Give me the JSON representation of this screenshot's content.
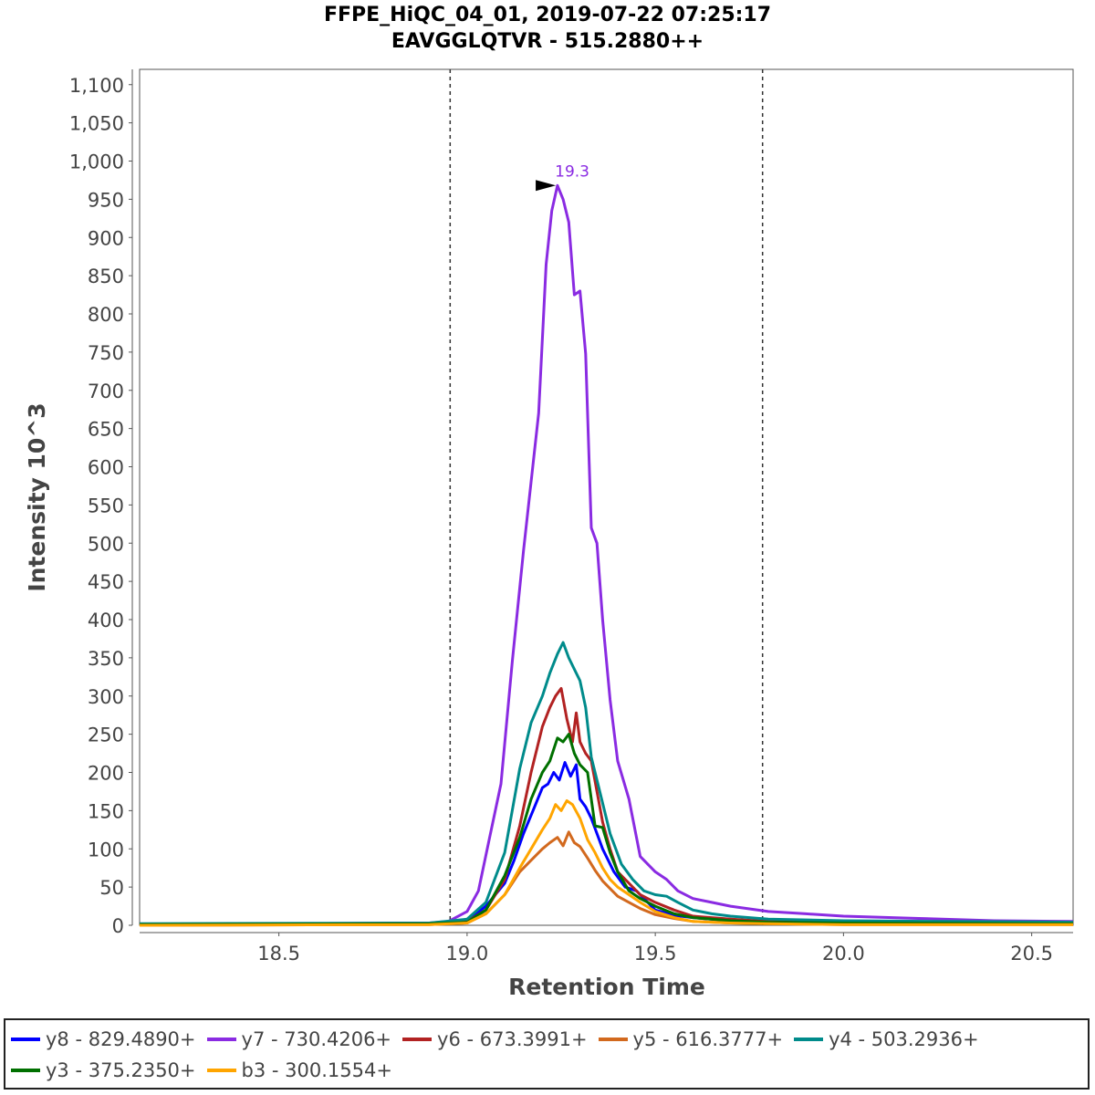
{
  "chart_data": {
    "type": "line",
    "title": "FFPE_HiQC_04_01, 2019-07-22 07:25:17",
    "subtitle": "EAVGGLQTVR - 515.2880++",
    "xlabel": "Retention Time",
    "ylabel": "Intensity 10^3",
    "xlim": [
      18.13,
      20.61
    ],
    "ylim": [
      0,
      1120
    ],
    "x_ticks": [
      18.5,
      19.0,
      19.5,
      20.0,
      20.5
    ],
    "x_tick_labels": [
      "18.5",
      "19.0",
      "19.5",
      "20.0",
      "20.5"
    ],
    "y_ticks": [
      0,
      50,
      100,
      150,
      200,
      250,
      300,
      350,
      400,
      450,
      500,
      550,
      600,
      650,
      700,
      750,
      800,
      850,
      900,
      950,
      1000,
      1050,
      1100
    ],
    "y_tick_labels": [
      "0",
      "50",
      "100",
      "150",
      "200",
      "250",
      "300",
      "350",
      "400",
      "450",
      "500",
      "550",
      "600",
      "650",
      "700",
      "750",
      "800",
      "850",
      "900",
      "950",
      "1,000",
      "1,050",
      "1,100"
    ],
    "integration_bounds": [
      18.955,
      19.785
    ],
    "peak_annotation": {
      "label": "19.3",
      "x": 19.255,
      "y": 968,
      "color": "#8a2be2"
    },
    "grid": false,
    "legend_position": "bottom",
    "series": [
      {
        "name": "y8 - 829.4890+",
        "color": "#0000ff",
        "width": 3,
        "x": [
          18.13,
          18.5,
          18.95,
          19.0,
          19.05,
          19.1,
          19.125,
          19.15,
          19.175,
          19.2,
          19.215,
          19.23,
          19.245,
          19.26,
          19.275,
          19.29,
          19.3,
          19.315,
          19.33,
          19.345,
          19.36,
          19.39,
          19.42,
          19.45,
          19.48,
          19.5,
          19.55,
          19.6,
          19.7,
          19.8,
          20.0,
          20.3,
          20.61
        ],
        "values": [
          1,
          1,
          2,
          6,
          25,
          55,
          85,
          120,
          150,
          180,
          185,
          200,
          190,
          213,
          195,
          210,
          165,
          155,
          140,
          120,
          100,
          70,
          50,
          45,
          30,
          20,
          13,
          10,
          6,
          4,
          3,
          2,
          2
        ]
      },
      {
        "name": "y7 - 730.4206+",
        "color": "#8a2be2",
        "width": 3,
        "x": [
          18.13,
          18.5,
          18.9,
          18.95,
          19.0,
          19.03,
          19.06,
          19.09,
          19.12,
          19.15,
          19.17,
          19.19,
          19.21,
          19.225,
          19.24,
          19.255,
          19.27,
          19.285,
          19.3,
          19.315,
          19.33,
          19.345,
          19.36,
          19.38,
          19.4,
          19.43,
          19.46,
          19.5,
          19.53,
          19.56,
          19.6,
          19.65,
          19.7,
          19.8,
          19.9,
          20.0,
          20.2,
          20.4,
          20.61
        ],
        "values": [
          1,
          2,
          3,
          5,
          18,
          45,
          115,
          185,
          345,
          490,
          580,
          670,
          865,
          935,
          968,
          950,
          920,
          825,
          830,
          748,
          520,
          500,
          400,
          295,
          215,
          165,
          90,
          70,
          60,
          45,
          35,
          30,
          25,
          18,
          15,
          12,
          9,
          6,
          5
        ]
      },
      {
        "name": "y6 - 673.3991+",
        "color": "#b22222",
        "width": 3,
        "x": [
          18.13,
          18.9,
          19.0,
          19.05,
          19.1,
          19.14,
          19.17,
          19.2,
          19.22,
          19.235,
          19.25,
          19.265,
          19.28,
          19.29,
          19.3,
          19.315,
          19.33,
          19.345,
          19.36,
          19.38,
          19.4,
          19.43,
          19.46,
          19.5,
          19.55,
          19.6,
          19.7,
          19.8,
          20.0,
          20.3,
          20.61
        ],
        "values": [
          1,
          2,
          5,
          20,
          60,
          130,
          200,
          260,
          285,
          300,
          310,
          270,
          240,
          278,
          240,
          225,
          215,
          175,
          135,
          100,
          70,
          55,
          40,
          30,
          20,
          12,
          8,
          5,
          4,
          3,
          2
        ]
      },
      {
        "name": "y5 - 616.3777+",
        "color": "#d2691e",
        "width": 3,
        "x": [
          18.13,
          18.9,
          19.0,
          19.05,
          19.1,
          19.14,
          19.17,
          19.2,
          19.22,
          19.24,
          19.255,
          19.27,
          19.285,
          19.3,
          19.32,
          19.34,
          19.36,
          19.38,
          19.4,
          19.43,
          19.46,
          19.5,
          19.55,
          19.6,
          19.7,
          19.8,
          20.0,
          20.61
        ],
        "values": [
          0,
          1,
          3,
          15,
          40,
          70,
          85,
          100,
          108,
          115,
          104,
          122,
          108,
          103,
          88,
          72,
          58,
          48,
          38,
          30,
          22,
          14,
          9,
          5,
          3,
          2,
          1,
          1
        ]
      },
      {
        "name": "y4 - 503.2936+",
        "color": "#008b8b",
        "width": 3,
        "x": [
          18.13,
          18.9,
          19.0,
          19.05,
          19.1,
          19.14,
          19.17,
          19.2,
          19.22,
          19.24,
          19.255,
          19.27,
          19.285,
          19.3,
          19.315,
          19.33,
          19.35,
          19.38,
          19.41,
          19.44,
          19.47,
          19.5,
          19.53,
          19.56,
          19.6,
          19.65,
          19.7,
          19.8,
          20.0,
          20.3,
          20.61
        ],
        "values": [
          2,
          3,
          8,
          30,
          95,
          205,
          265,
          300,
          330,
          355,
          370,
          350,
          335,
          320,
          285,
          220,
          180,
          120,
          80,
          60,
          45,
          40,
          38,
          30,
          20,
          15,
          12,
          8,
          6,
          5,
          4
        ]
      },
      {
        "name": "y3 - 375.2350+",
        "color": "#007000",
        "width": 3,
        "x": [
          18.13,
          18.9,
          19.0,
          19.05,
          19.1,
          19.14,
          19.17,
          19.2,
          19.22,
          19.24,
          19.255,
          19.27,
          19.285,
          19.3,
          19.32,
          19.34,
          19.36,
          19.38,
          19.4,
          19.43,
          19.46,
          19.5,
          19.55,
          19.6,
          19.7,
          19.8,
          20.0,
          20.61
        ],
        "values": [
          1,
          2,
          4,
          20,
          65,
          115,
          165,
          200,
          215,
          245,
          240,
          250,
          225,
          210,
          200,
          130,
          128,
          95,
          70,
          45,
          35,
          25,
          15,
          10,
          6,
          4,
          3,
          2
        ]
      },
      {
        "name": "b3 - 300.1554+",
        "color": "#ffa500",
        "width": 3,
        "x": [
          18.13,
          18.9,
          19.0,
          19.05,
          19.1,
          19.14,
          19.17,
          19.2,
          19.22,
          19.235,
          19.25,
          19.265,
          19.28,
          19.3,
          19.32,
          19.34,
          19.36,
          19.38,
          19.4,
          19.43,
          19.46,
          19.5,
          19.55,
          19.6,
          19.7,
          19.8,
          20.0,
          20.61
        ],
        "values": [
          0,
          1,
          3,
          15,
          40,
          75,
          100,
          125,
          140,
          158,
          150,
          163,
          158,
          140,
          112,
          95,
          75,
          60,
          50,
          40,
          30,
          18,
          10,
          5,
          3,
          2,
          1,
          1
        ]
      }
    ]
  }
}
